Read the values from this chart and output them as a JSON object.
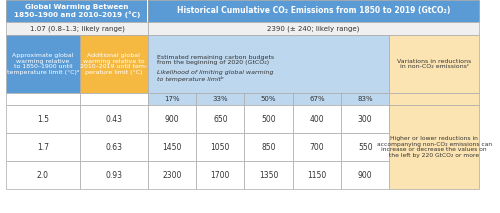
{
  "title_left": "Global Warming Between\n1850–1900 and 2010–2019 (°C)",
  "title_right": "Historical Cumulative CO₂ Emissions from 1850 to 2019 (GtCO₂)",
  "subtitle_left": "1.07 (0.8–1.3; likely range)",
  "subtitle_right": "2390 (± 240; likely range)",
  "col1_header": "Approximate global\nwarming relative\nto 1850–1900 until\ntemperature limit (°C)ᵃ",
  "col2_header": "Additional global\nwarming relative to\n2010–2019 until tem-\nperature limit (°C)",
  "col3_header": "Estimated remaining carbon budgets\nfrom the beginning of 2020 (GtCO₂)\n\nLikelihood of limiting global warming\nto temperature limitᵇ",
  "col_right_header1": "Variations in reductions\nin non-CO₂ emissionsᶜ",
  "col_right_body": "Higher or lower reductions in\naccompanying non-CO₂ emissions can\nincrease or decrease the values on\nthe left by 220 GtCO₂ or more",
  "likelihood_labels": [
    "17%",
    "33%",
    "50%",
    "67%",
    "83%"
  ],
  "data_rows": [
    {
      "temp": "1.5",
      "add_warming": "0.43",
      "values": [
        "900",
        "650",
        "500",
        "400",
        "300"
      ]
    },
    {
      "temp": "1.7",
      "add_warming": "0.63",
      "values": [
        "1450",
        "1050",
        "850",
        "700",
        "550"
      ]
    },
    {
      "temp": "2.0",
      "add_warming": "0.93",
      "values": [
        "2300",
        "1700",
        "1350",
        "1150",
        "900"
      ]
    }
  ],
  "color_header_dark_blue": "#5b9bd5",
  "color_header_light_blue": "#bdd7ee",
  "color_orange": "#f5b942",
  "color_light_orange": "#fce4b2",
  "color_white": "#ffffff",
  "color_border": "#999999",
  "color_text_dark": "#333333",
  "color_header_text": "#ffffff",
  "color_subheader_text": "#444444"
}
